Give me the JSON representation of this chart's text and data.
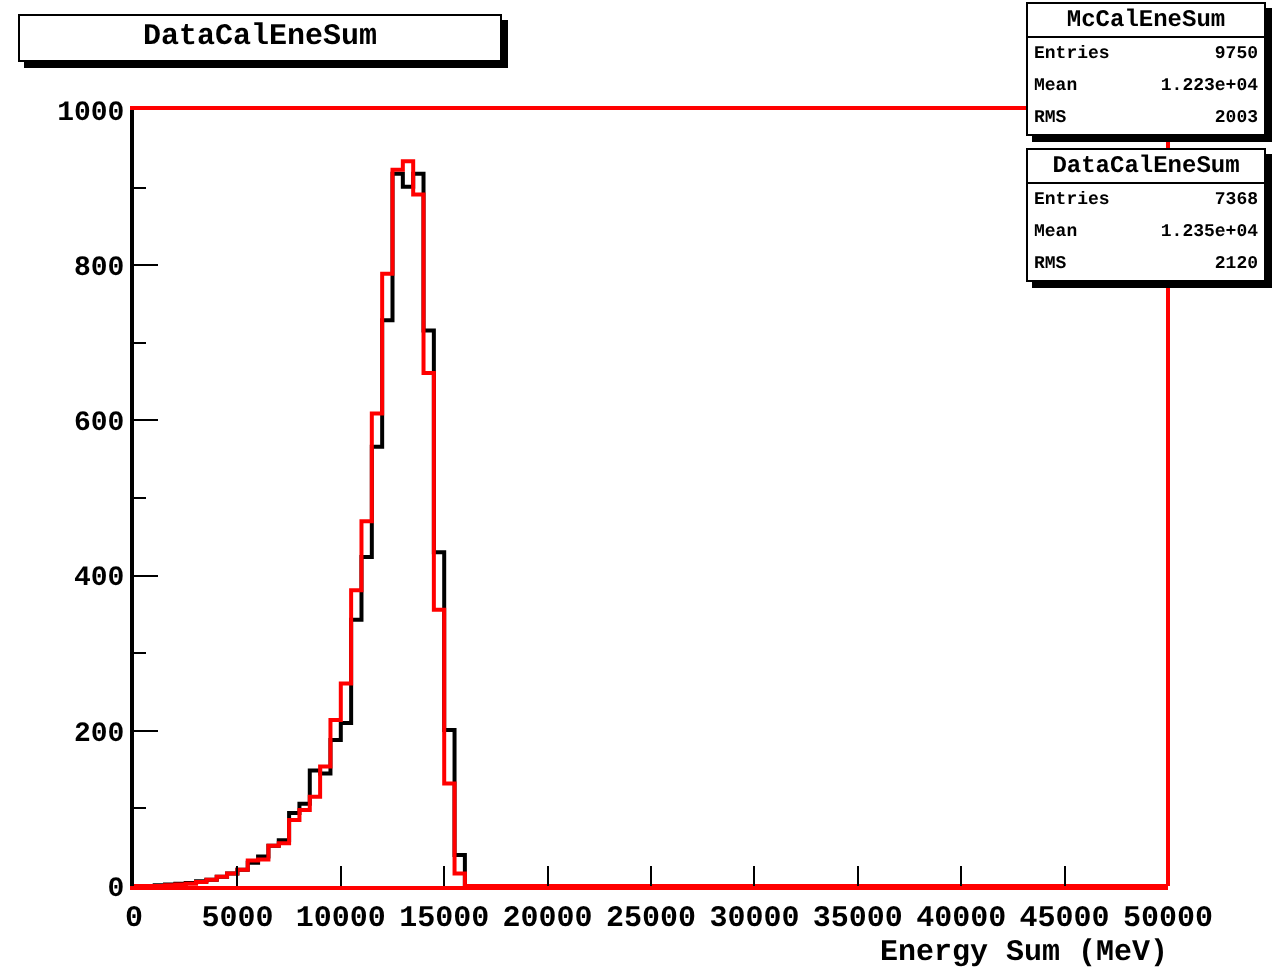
{
  "chart_data": {
    "type": "histogram",
    "title": "DataCalEneSum",
    "xlabel": "Energy Sum (MeV)",
    "bins": [
      0,
      500,
      1000,
      1500,
      2000,
      2500,
      3000,
      3500,
      4000,
      4500,
      5000,
      5500,
      6000,
      6500,
      7000,
      7500,
      8000,
      8500,
      9000,
      9500,
      10000,
      10500,
      11000,
      11500,
      12000,
      12500,
      13000,
      13500,
      14000,
      14500,
      15000,
      15500,
      16000,
      16500,
      17000,
      17500,
      18000,
      18500,
      19000,
      19500,
      20000,
      20500,
      21000,
      21500,
      22000,
      22500,
      23000,
      23500,
      24000,
      24500,
      25000,
      25500,
      26000,
      26500,
      27000,
      27500,
      28000,
      28500,
      29000,
      29500,
      30000,
      30500,
      31000,
      31500,
      32000,
      32500,
      33000,
      33500,
      34000,
      34500,
      35000,
      35500,
      36000,
      36500,
      37000,
      37500,
      38000,
      38500,
      39000,
      39500,
      40000,
      40500,
      41000,
      41500,
      42000,
      42500,
      43000,
      43500,
      44000,
      44500,
      45000,
      45500,
      46000,
      46500,
      47000,
      47500,
      48000,
      48500,
      49000,
      49500,
      50000
    ],
    "series": [
      {
        "color": "#000000",
        "values": [
          0,
          0,
          1,
          2,
          3,
          4,
          6,
          8,
          12,
          16,
          21,
          30,
          38,
          52,
          59,
          94,
          106,
          149,
          145,
          188,
          210,
          343,
          424,
          566,
          729,
          918,
          901,
          918,
          716,
          430,
          201,
          40,
          0,
          0,
          0,
          0,
          0,
          0,
          0,
          0,
          0,
          0,
          0,
          0,
          0,
          0,
          0,
          0,
          0,
          0,
          0,
          0,
          0,
          0,
          0,
          0,
          0,
          0,
          0,
          0,
          0,
          0,
          0,
          0,
          0,
          0,
          0,
          0,
          0,
          0,
          0,
          0,
          0,
          0,
          0,
          0,
          0,
          0,
          0,
          0,
          0,
          0,
          0,
          0,
          0,
          0,
          0,
          0,
          0,
          0,
          0,
          0,
          0,
          0,
          0,
          0,
          0,
          0,
          0,
          0
        ]
      },
      {
        "color": "#ff0000",
        "values": [
          0,
          0,
          0,
          1,
          2,
          3,
          5,
          8,
          12,
          16,
          21,
          33,
          34,
          52,
          55,
          85,
          98,
          115,
          154,
          214,
          261,
          381,
          470,
          609,
          789,
          923,
          934,
          891,
          661,
          356,
          132,
          16,
          0,
          0,
          0,
          0,
          0,
          0,
          0,
          0,
          0,
          0,
          0,
          0,
          0,
          0,
          0,
          0,
          0,
          0,
          0,
          0,
          0,
          0,
          0,
          0,
          0,
          0,
          0,
          0,
          0,
          0,
          0,
          0,
          0,
          0,
          0,
          0,
          0,
          0,
          0,
          0,
          0,
          0,
          0,
          0,
          0,
          0,
          0,
          0,
          0,
          0,
          0,
          0,
          0,
          0,
          0,
          0,
          0,
          0,
          0,
          0,
          0,
          0,
          0,
          0,
          0,
          0,
          0,
          0
        ]
      }
    ],
    "xlim": [
      0,
      50000
    ],
    "xticks": [
      0,
      5000,
      10000,
      15000,
      20000,
      25000,
      30000,
      35000,
      40000,
      45000,
      50000
    ],
    "ylim": [
      0,
      1000
    ],
    "yticks": [
      0,
      200,
      400,
      600,
      800,
      1000
    ],
    "grid": false,
    "annotations": [
      "McCalEneSum",
      "Entries",
      "9750",
      "Mean",
      "1.223e+04",
      "RMS",
      "2003",
      "DataCalEneSum",
      "Entries",
      "7368",
      "Mean",
      "1.235e+04",
      "RMS",
      "2120"
    ]
  }
}
